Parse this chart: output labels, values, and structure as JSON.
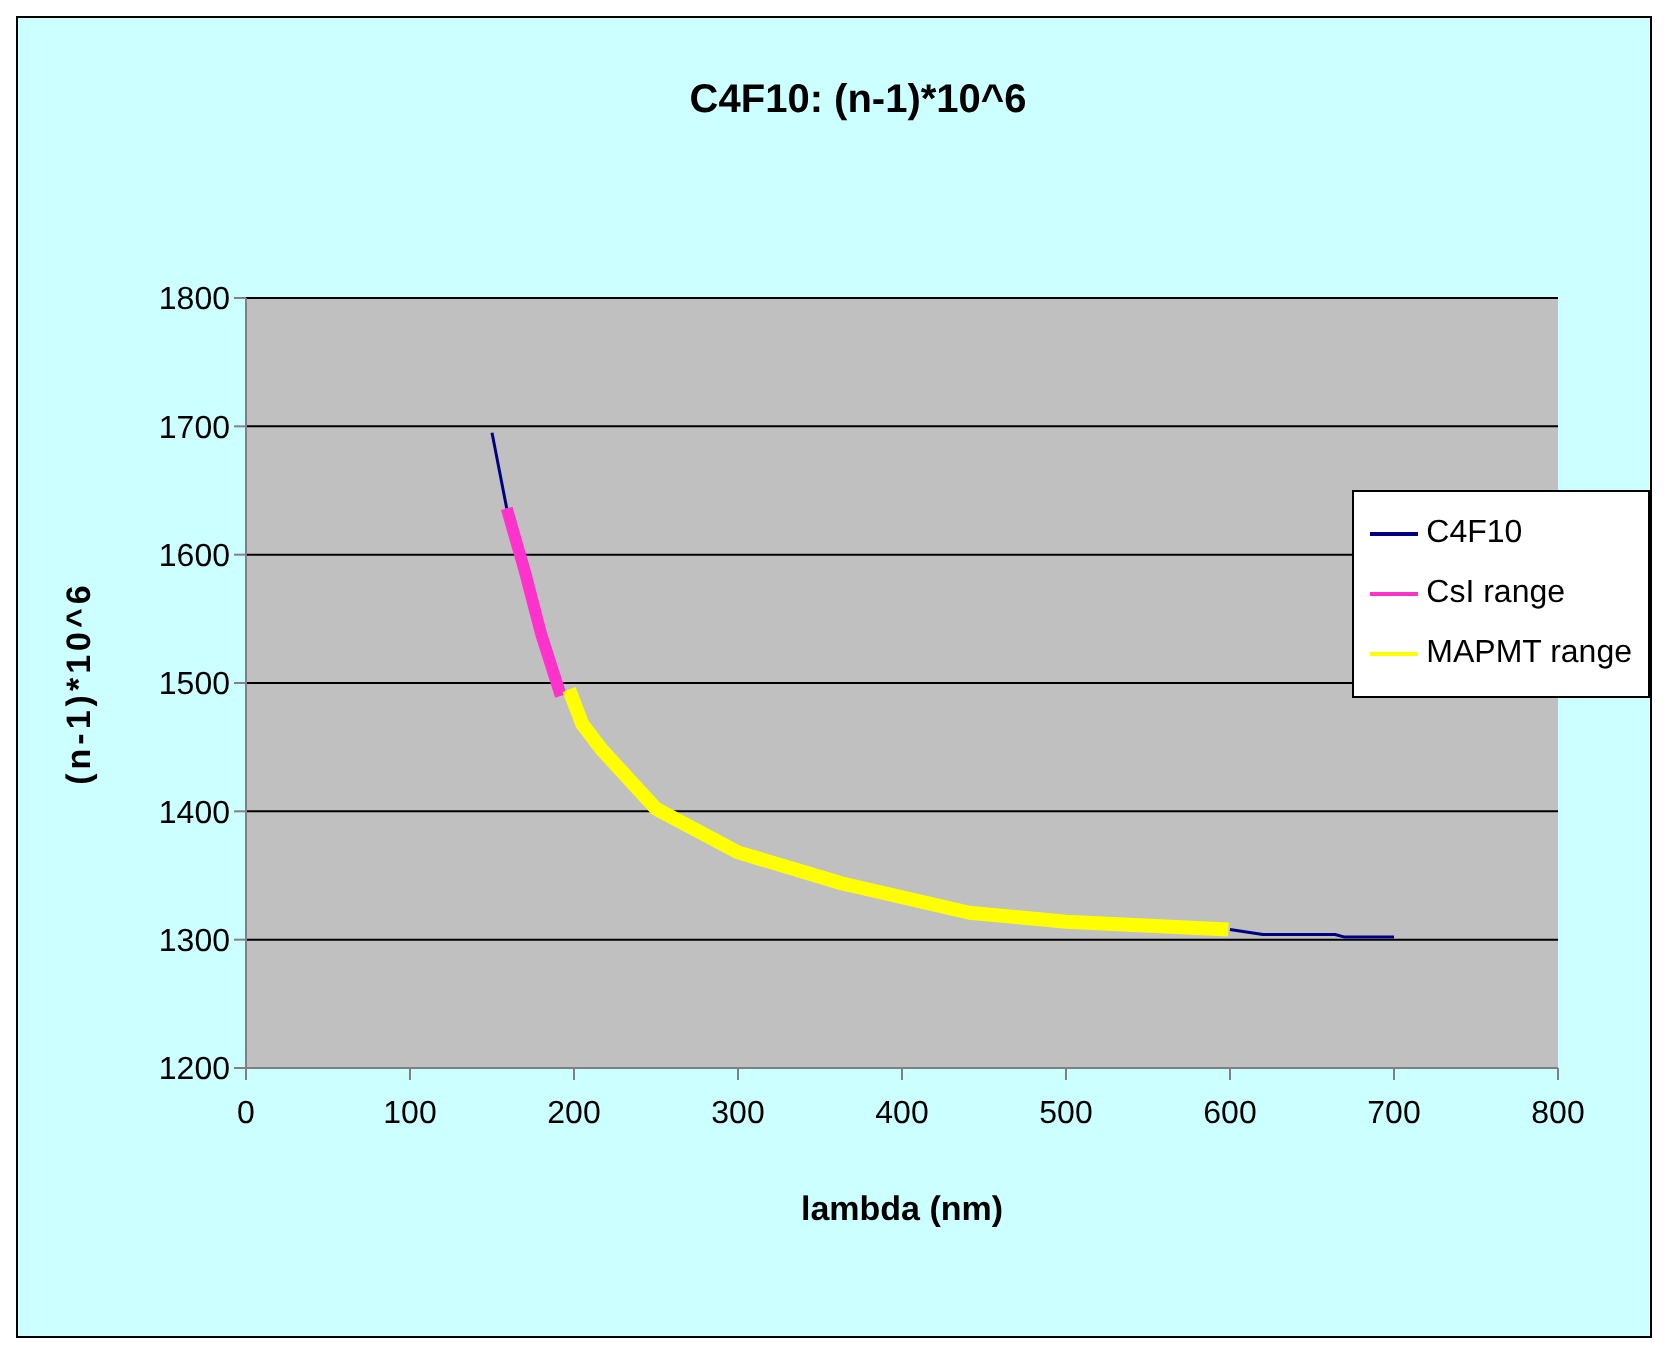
{
  "chart_data": {
    "type": "line",
    "title": "C4F10:  (n-1)*10^6",
    "xlabel": "lambda (nm)",
    "ylabel": "(n-1)*10^6",
    "xlim": [
      0,
      800
    ],
    "xticks": [
      0,
      100,
      200,
      300,
      400,
      500,
      600,
      700,
      800
    ],
    "ylim": [
      1200,
      1800
    ],
    "yticks": [
      1200,
      1300,
      1400,
      1500,
      1600,
      1700,
      1800
    ],
    "grid": "y",
    "legend": "right",
    "marker": "none",
    "line_style": "solid",
    "series": [
      {
        "name": "C4F10",
        "color": "#000080",
        "x": [
          150,
          159,
          300,
          600,
          620,
          664,
          670,
          700
        ],
        "values": [
          1695,
          1636,
          null,
          1308,
          1304,
          1304,
          1302,
          1302
        ]
      },
      {
        "name": "CsI range",
        "color": "#ff33cc",
        "x": [
          159,
          170,
          180,
          192
        ],
        "values": [
          1636,
          1587,
          1538,
          1490
        ]
      },
      {
        "name": "MAPMT range",
        "color": "#ffff00",
        "x": [
          197,
          205,
          217,
          250,
          300,
          363,
          441,
          500,
          599
        ],
        "values": [
          1495,
          1468,
          1448,
          1402,
          1368,
          1344,
          1321,
          1314,
          1308
        ]
      }
    ]
  }
}
